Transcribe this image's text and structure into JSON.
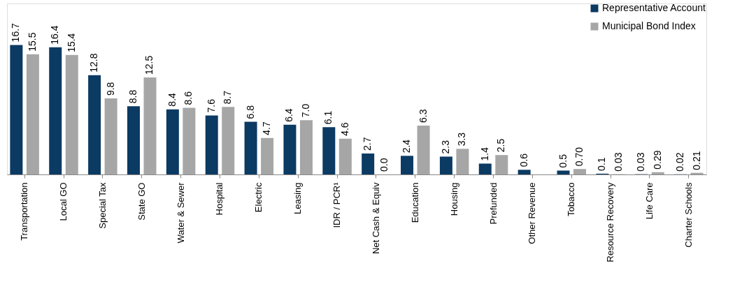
{
  "chart_data": {
    "type": "bar",
    "categories": [
      "Transportation",
      "Local GO",
      "Special Tax",
      "State GO",
      "Water & Sewer",
      "Hospital",
      "Electric",
      "Leasing",
      "IDR / PCR¹",
      "Net Cash & Equiv",
      "Education",
      "Housing",
      "Prefunded",
      "Other Revenue",
      "Tobacco",
      "Resource Recovery",
      "Life Care",
      "Charter Schools"
    ],
    "series": [
      {
        "name": "Representative Account",
        "color": "#0b3a63",
        "values": [
          16.7,
          16.4,
          12.8,
          8.8,
          8.4,
          7.6,
          6.8,
          6.4,
          6.1,
          2.7,
          2.4,
          2.3,
          1.4,
          0.6,
          0.5,
          0.1,
          0.03,
          0.02
        ],
        "value_labels": [
          "16.7",
          "16.4",
          "12.8",
          "8.8",
          "8.4",
          "7.6",
          "6.8",
          "6.4",
          "6.1",
          "2.7",
          "2.4",
          "2.3",
          "1.4",
          "0.6",
          "0.5",
          "0.1",
          "0.03",
          "0.02"
        ]
      },
      {
        "name": "Municipal Bond Index",
        "color": "#a6a6a6",
        "values": [
          15.5,
          15.4,
          9.8,
          12.5,
          8.6,
          8.7,
          4.7,
          7.0,
          4.6,
          0.0,
          6.3,
          3.3,
          2.5,
          null,
          0.7,
          0.03,
          0.29,
          0.21
        ],
        "value_labels": [
          "15.5",
          "15.4",
          "9.8",
          "12.5",
          "8.6",
          "8.7",
          "4.7",
          "7.0",
          "4.6",
          "0.0",
          "6.3",
          "3.3",
          "2.5",
          null,
          "0.70",
          "0.03",
          "0.29",
          "0.21"
        ]
      }
    ],
    "legend": "top right",
    "grid": false
  }
}
